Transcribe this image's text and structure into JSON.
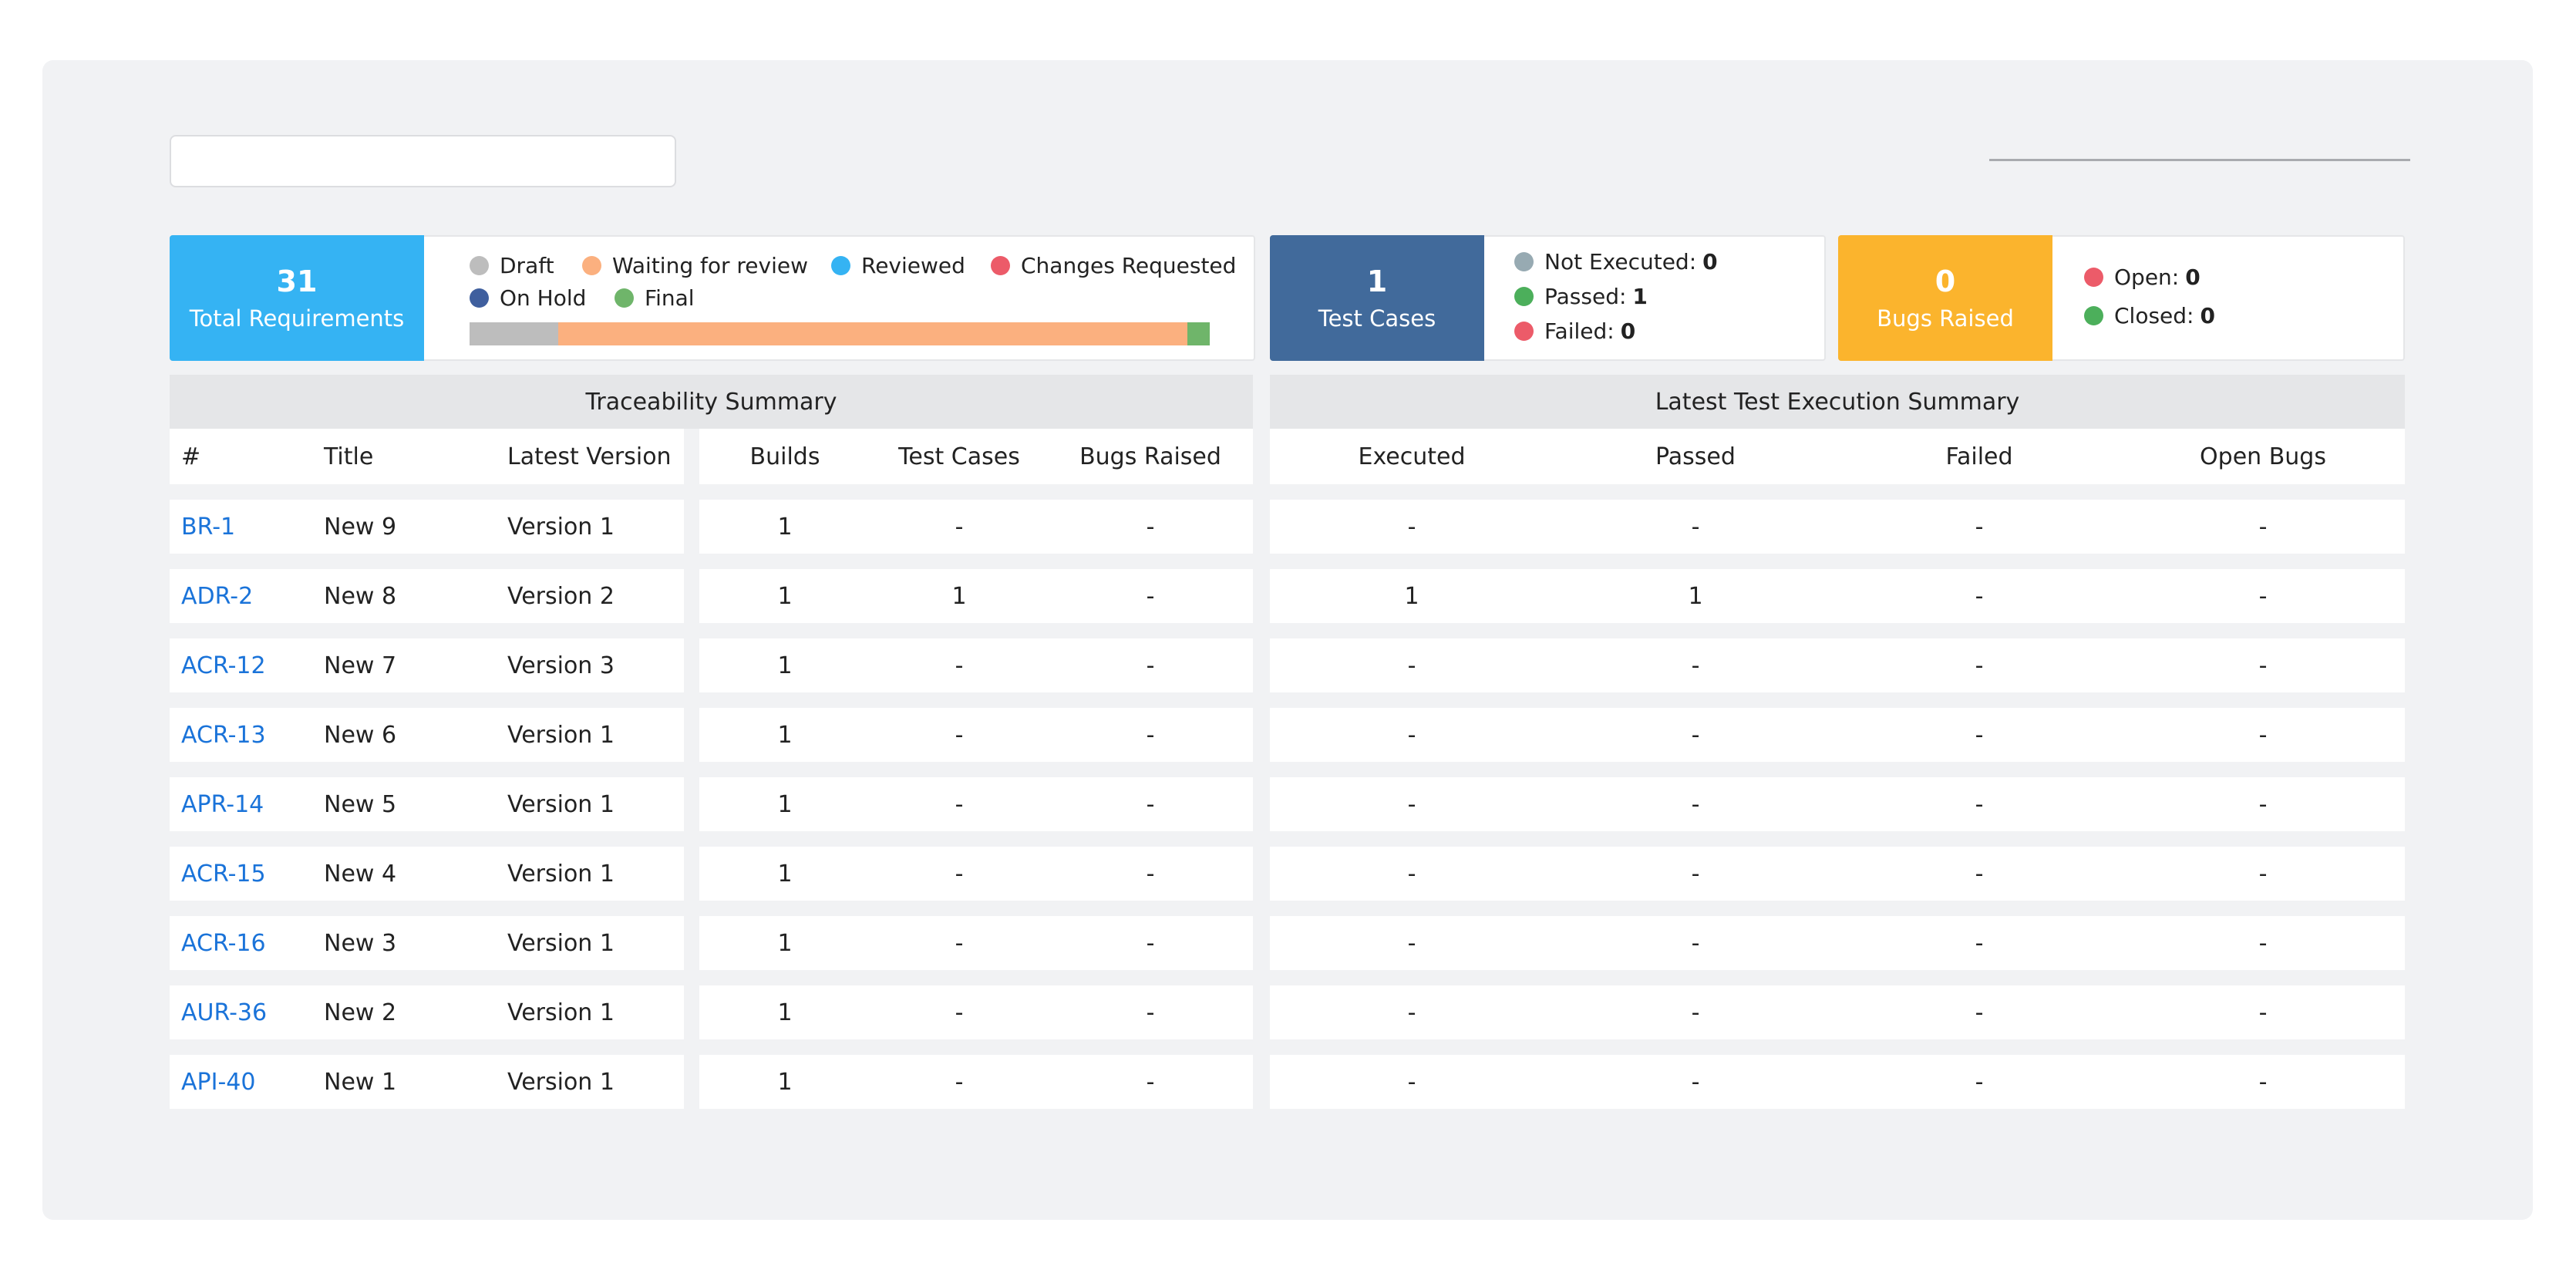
{
  "summary": {
    "requirements": {
      "count": "31",
      "label": "Total Requirements"
    },
    "status_legend": [
      {
        "label": "Draft",
        "color": "#bdbdbd"
      },
      {
        "label": "Waiting for review",
        "color": "#fbb07f"
      },
      {
        "label": "Reviewed",
        "color": "#35b3f3"
      },
      {
        "label": "Changes Requested",
        "color": "#ec5b69"
      },
      {
        "label": "On Hold",
        "color": "#3f5f9e"
      },
      {
        "label": "Final",
        "color": "#6fb56a"
      }
    ],
    "status_bar": [
      {
        "status": "Draft",
        "fraction": 0.12,
        "color": "#bdbdbd"
      },
      {
        "status": "Waiting for review",
        "fraction": 0.85,
        "color": "#fbb07f"
      },
      {
        "status": "Final",
        "fraction": 0.03,
        "color": "#6fb56a"
      }
    ],
    "test_cases": {
      "count": "1",
      "label": "Test Cases"
    },
    "test_legend": [
      {
        "label": "Not Executed:",
        "value": "0",
        "color": "#97aab2"
      },
      {
        "label": "Passed:",
        "value": "1",
        "color": "#4caf5b"
      },
      {
        "label": "Failed:",
        "value": "0",
        "color": "#ec5b69"
      }
    ],
    "bugs": {
      "count": "0",
      "label": "Bugs Raised"
    },
    "bug_legend": [
      {
        "label": "Open:",
        "value": "0",
        "color": "#ec5b69"
      },
      {
        "label": "Closed:",
        "value": "0",
        "color": "#4caf5b"
      }
    ]
  },
  "table": {
    "traceability_title": "Traceability Summary",
    "execution_title": "Latest Test Execution Summary",
    "columns": [
      "#",
      "Title",
      "Latest Version",
      "Builds",
      "Test Cases",
      "Bugs Raised",
      "Executed",
      "Passed",
      "Failed",
      "Open Bugs"
    ],
    "rows": [
      [
        "BR-1",
        "New 9",
        "Version 1",
        "1",
        "-",
        "-",
        "-",
        "-",
        "-",
        "-"
      ],
      [
        "ADR-2",
        "New 8",
        "Version 2",
        "1",
        "1",
        "-",
        "1",
        "1",
        "-",
        "-"
      ],
      [
        "ACR-12",
        "New 7",
        "Version 3",
        "1",
        "-",
        "-",
        "-",
        "-",
        "-",
        "-"
      ],
      [
        "ACR-13",
        "New 6",
        "Version 1",
        "1",
        "-",
        "-",
        "-",
        "-",
        "-",
        "-"
      ],
      [
        "APR-14",
        "New 5",
        "Version 1",
        "1",
        "-",
        "-",
        "-",
        "-",
        "-",
        "-"
      ],
      [
        "ACR-15",
        "New 4",
        "Version 1",
        "1",
        "-",
        "-",
        "-",
        "-",
        "-",
        "-"
      ],
      [
        "ACR-16",
        "New 3",
        "Version 1",
        "1",
        "-",
        "-",
        "-",
        "-",
        "-",
        "-"
      ],
      [
        "AUR-36",
        "New 2",
        "Version 1",
        "1",
        "-",
        "-",
        "-",
        "-",
        "-",
        "-"
      ],
      [
        "API-40",
        "New 1",
        "Version 1",
        "1",
        "-",
        "-",
        "-",
        "-",
        "-",
        "-"
      ]
    ]
  },
  "colors": {
    "requirements_badge": "#35b3f3",
    "test_cases_badge": "#416a9b",
    "bugs_badge": "#fbb42d",
    "link": "#1a73d9"
  }
}
